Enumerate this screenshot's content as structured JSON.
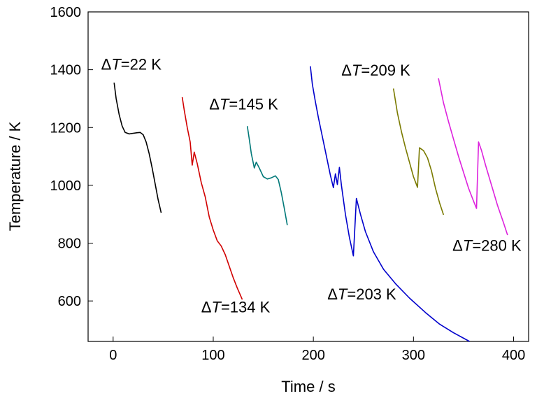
{
  "chart_data": {
    "type": "line",
    "xlabel": "Time / s",
    "ylabel": "Temperature / K",
    "xlim": [
      -25,
      415
    ],
    "ylim": [
      460,
      1600
    ],
    "xticks": [
      0,
      100,
      200,
      300,
      400
    ],
    "yticks": [
      600,
      800,
      1000,
      1200,
      1400,
      1600
    ],
    "grid": false,
    "series": [
      {
        "color": "#000000",
        "points": [
          [
            1,
            1355
          ],
          [
            3,
            1300
          ],
          [
            6,
            1245
          ],
          [
            9,
            1205
          ],
          [
            12,
            1183
          ],
          [
            16,
            1178
          ],
          [
            20,
            1180
          ],
          [
            24,
            1182
          ],
          [
            27,
            1183
          ],
          [
            30,
            1175
          ],
          [
            33,
            1150
          ],
          [
            36,
            1110
          ],
          [
            39,
            1060
          ],
          [
            42,
            1005
          ],
          [
            45,
            950
          ],
          [
            48,
            905
          ]
        ]
      },
      {
        "color": "#d10000",
        "points": [
          [
            69,
            1305
          ],
          [
            71,
            1260
          ],
          [
            74,
            1200
          ],
          [
            77,
            1150
          ],
          [
            79,
            1070
          ],
          [
            81,
            1115
          ],
          [
            84,
            1075
          ],
          [
            88,
            1010
          ],
          [
            92,
            960
          ],
          [
            96,
            890
          ],
          [
            100,
            845
          ],
          [
            104,
            808
          ],
          [
            108,
            790
          ],
          [
            112,
            760
          ],
          [
            116,
            720
          ],
          [
            120,
            680
          ],
          [
            124,
            645
          ],
          [
            129,
            605
          ]
        ]
      },
      {
        "color": "#007878",
        "points": [
          [
            134,
            1205
          ],
          [
            136,
            1160
          ],
          [
            138,
            1110
          ],
          [
            141,
            1060
          ],
          [
            143,
            1080
          ],
          [
            146,
            1060
          ],
          [
            150,
            1030
          ],
          [
            154,
            1022
          ],
          [
            158,
            1026
          ],
          [
            162,
            1033
          ],
          [
            165,
            1020
          ],
          [
            168,
            975
          ],
          [
            171,
            920
          ],
          [
            174,
            862
          ]
        ]
      },
      {
        "color": "#0000cc",
        "points": [
          [
            197,
            1412
          ],
          [
            199,
            1350
          ],
          [
            202,
            1290
          ],
          [
            205,
            1235
          ],
          [
            208,
            1185
          ],
          [
            211,
            1135
          ],
          [
            214,
            1085
          ],
          [
            217,
            1035
          ],
          [
            220,
            992
          ],
          [
            222,
            1040
          ],
          [
            224,
            1003
          ],
          [
            226,
            1062
          ],
          [
            228,
            1000
          ],
          [
            232,
            900
          ],
          [
            236,
            820
          ],
          [
            240,
            756
          ],
          [
            243,
            955
          ],
          [
            247,
            900
          ],
          [
            252,
            840
          ],
          [
            260,
            770
          ],
          [
            270,
            710
          ],
          [
            282,
            660
          ],
          [
            296,
            610
          ],
          [
            312,
            560
          ],
          [
            326,
            520
          ],
          [
            340,
            490
          ],
          [
            356,
            460
          ]
        ]
      },
      {
        "color": "#7a7a00",
        "points": [
          [
            280,
            1335
          ],
          [
            284,
            1250
          ],
          [
            288,
            1185
          ],
          [
            292,
            1130
          ],
          [
            296,
            1080
          ],
          [
            300,
            1030
          ],
          [
            304,
            993
          ],
          [
            306,
            1130
          ],
          [
            310,
            1120
          ],
          [
            314,
            1095
          ],
          [
            318,
            1050
          ],
          [
            322,
            990
          ],
          [
            326,
            940
          ],
          [
            330,
            898
          ]
        ]
      },
      {
        "color": "#dd22dd",
        "points": [
          [
            325,
            1370
          ],
          [
            330,
            1285
          ],
          [
            335,
            1220
          ],
          [
            340,
            1160
          ],
          [
            345,
            1100
          ],
          [
            350,
            1045
          ],
          [
            355,
            990
          ],
          [
            360,
            945
          ],
          [
            363,
            920
          ],
          [
            365,
            1150
          ],
          [
            368,
            1120
          ],
          [
            372,
            1070
          ],
          [
            378,
            1000
          ],
          [
            384,
            930
          ],
          [
            390,
            870
          ],
          [
            394,
            828
          ]
        ]
      }
    ],
    "annotations": [
      {
        "delta": "Δ",
        "var": "T",
        "text": "=22 K",
        "x": -12,
        "y": 1400
      },
      {
        "delta": "Δ",
        "var": "T",
        "text": "=134 K",
        "x": 88,
        "y": 560
      },
      {
        "delta": "Δ",
        "var": "T",
        "text": "=145 K",
        "x": 96,
        "y": 1262
      },
      {
        "delta": "Δ",
        "var": "T",
        "text": "=203 K",
        "x": 214,
        "y": 605
      },
      {
        "delta": "Δ",
        "var": "T",
        "text": "=209 K",
        "x": 228,
        "y": 1380
      },
      {
        "delta": "Δ",
        "var": "T",
        "text": "=280 K",
        "x": 339,
        "y": 773
      }
    ]
  }
}
